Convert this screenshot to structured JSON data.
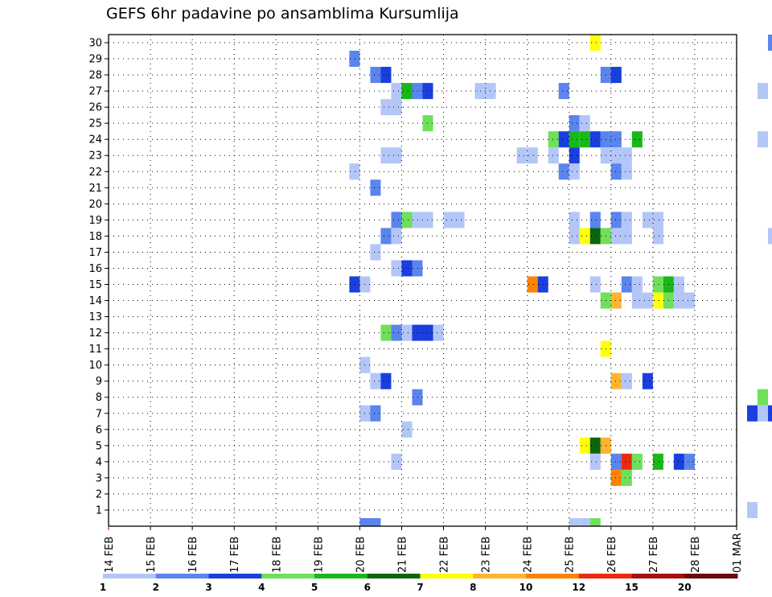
{
  "chart_data": {
    "type": "heatmap",
    "title": "GEFS 6hr padavine po ansamblima Kursumlija",
    "xlabel": "",
    "ylabel": "",
    "x_ticks": [
      "14 FEB",
      "15 FEB",
      "16 FEB",
      "17 FEB",
      "18 FEB",
      "19 FEB",
      "20 FEB",
      "21 FEB",
      "22 FEB",
      "23 FEB",
      "24 FEB",
      "25 FEB",
      "26 FEB",
      "27 FEB",
      "28 FEB",
      "01 MAR"
    ],
    "x_range_days": [
      0,
      15
    ],
    "y_ticks": [
      1,
      2,
      3,
      4,
      5,
      6,
      7,
      8,
      9,
      10,
      11,
      12,
      13,
      14,
      15,
      16,
      17,
      18,
      19,
      20,
      21,
      22,
      23,
      24,
      25,
      26,
      27,
      28,
      29,
      30
    ],
    "ylim": [
      0,
      30
    ],
    "grid": true,
    "legend": {
      "placement": "bottom",
      "labels": [
        "1",
        "2",
        "3",
        "4",
        "5",
        "6",
        "7",
        "8",
        "10",
        "12",
        "15",
        "20"
      ],
      "colors": [
        "#b3c6f7",
        "#5a84ee",
        "#1a3fde",
        "#6ee05a",
        "#18b818",
        "#0a660a",
        "#ffff0a",
        "#ffb430",
        "#ff8200",
        "#e82a10",
        "#a81010",
        "#6a0a0a"
      ]
    },
    "cells": [
      {
        "member": 30,
        "t": 25.5,
        "class": 7
      },
      {
        "member": 30,
        "t": 29.75,
        "class": 2
      },
      {
        "member": 29,
        "t": 19.75,
        "class": 2
      },
      {
        "member": 28,
        "t": 20.25,
        "class": 2
      },
      {
        "member": 28,
        "t": 20.5,
        "class": 3
      },
      {
        "member": 28,
        "t": 25.75,
        "class": 2
      },
      {
        "member": 28,
        "t": 26.0,
        "class": 3
      },
      {
        "member": 27,
        "t": 20.75,
        "class": 1
      },
      {
        "member": 27,
        "t": 21.0,
        "class": 5
      },
      {
        "member": 27,
        "t": 21.25,
        "class": 2
      },
      {
        "member": 27,
        "t": 21.5,
        "class": 3
      },
      {
        "member": 27,
        "t": 22.75,
        "class": 1
      },
      {
        "member": 27,
        "t": 23.0,
        "class": 1
      },
      {
        "member": 27,
        "t": 24.75,
        "class": 2
      },
      {
        "member": 27,
        "t": 29.5,
        "class": 1
      },
      {
        "member": 26,
        "t": 20.5,
        "class": 1
      },
      {
        "member": 26,
        "t": 20.75,
        "class": 1
      },
      {
        "member": 25,
        "t": 21.5,
        "class": 4
      },
      {
        "member": 25,
        "t": 25.0,
        "class": 2
      },
      {
        "member": 25,
        "t": 25.25,
        "class": 1
      },
      {
        "member": 24,
        "t": 24.5,
        "class": 4
      },
      {
        "member": 24,
        "t": 24.75,
        "class": 3
      },
      {
        "member": 24,
        "t": 25.0,
        "class": 5
      },
      {
        "member": 24,
        "t": 25.25,
        "class": 5
      },
      {
        "member": 24,
        "t": 25.5,
        "class": 3
      },
      {
        "member": 24,
        "t": 25.75,
        "class": 2
      },
      {
        "member": 24,
        "t": 26.0,
        "class": 2
      },
      {
        "member": 24,
        "t": 26.5,
        "class": 5
      },
      {
        "member": 24,
        "t": 29.5,
        "class": 1
      },
      {
        "member": 23,
        "t": 20.5,
        "class": 1
      },
      {
        "member": 23,
        "t": 20.75,
        "class": 1
      },
      {
        "member": 23,
        "t": 23.75,
        "class": 1
      },
      {
        "member": 23,
        "t": 24.0,
        "class": 1
      },
      {
        "member": 23,
        "t": 24.5,
        "class": 1
      },
      {
        "member": 23,
        "t": 25.0,
        "class": 3
      },
      {
        "member": 23,
        "t": 25.75,
        "class": 1
      },
      {
        "member": 23,
        "t": 26.0,
        "class": 1
      },
      {
        "member": 23,
        "t": 26.25,
        "class": 1
      },
      {
        "member": 22,
        "t": 19.75,
        "class": 1
      },
      {
        "member": 22,
        "t": 24.75,
        "class": 2
      },
      {
        "member": 22,
        "t": 25.0,
        "class": 1
      },
      {
        "member": 22,
        "t": 26.0,
        "class": 2
      },
      {
        "member": 22,
        "t": 26.25,
        "class": 1
      },
      {
        "member": 21,
        "t": 20.25,
        "class": 2
      },
      {
        "member": 19,
        "t": 20.75,
        "class": 2
      },
      {
        "member": 19,
        "t": 21.0,
        "class": 4
      },
      {
        "member": 19,
        "t": 21.25,
        "class": 1
      },
      {
        "member": 19,
        "t": 21.5,
        "class": 1
      },
      {
        "member": 19,
        "t": 22.0,
        "class": 1
      },
      {
        "member": 19,
        "t": 22.25,
        "class": 1
      },
      {
        "member": 19,
        "t": 25.0,
        "class": 1
      },
      {
        "member": 19,
        "t": 25.5,
        "class": 2
      },
      {
        "member": 19,
        "t": 26.0,
        "class": 2
      },
      {
        "member": 19,
        "t": 26.25,
        "class": 1
      },
      {
        "member": 19,
        "t": 26.75,
        "class": 1
      },
      {
        "member": 19,
        "t": 27.0,
        "class": 1
      },
      {
        "member": 18,
        "t": 20.5,
        "class": 2
      },
      {
        "member": 18,
        "t": 20.75,
        "class": 1
      },
      {
        "member": 18,
        "t": 25.0,
        "class": 1
      },
      {
        "member": 18,
        "t": 25.25,
        "class": 7
      },
      {
        "member": 18,
        "t": 25.5,
        "class": 6
      },
      {
        "member": 18,
        "t": 25.75,
        "class": 4
      },
      {
        "member": 18,
        "t": 26.0,
        "class": 1
      },
      {
        "member": 18,
        "t": 26.25,
        "class": 1
      },
      {
        "member": 18,
        "t": 27.0,
        "class": 1
      },
      {
        "member": 18,
        "t": 29.75,
        "class": 1
      },
      {
        "member": 17,
        "t": 20.25,
        "class": 1
      },
      {
        "member": 16,
        "t": 20.75,
        "class": 1
      },
      {
        "member": 16,
        "t": 21.0,
        "class": 3
      },
      {
        "member": 16,
        "t": 21.25,
        "class": 2
      },
      {
        "member": 15,
        "t": 19.75,
        "class": 3
      },
      {
        "member": 15,
        "t": 20.0,
        "class": 1
      },
      {
        "member": 15,
        "t": 24.0,
        "class": 9
      },
      {
        "member": 15,
        "t": 24.25,
        "class": 3
      },
      {
        "member": 15,
        "t": 25.5,
        "class": 1
      },
      {
        "member": 15,
        "t": 26.25,
        "class": 2
      },
      {
        "member": 15,
        "t": 26.5,
        "class": 1
      },
      {
        "member": 15,
        "t": 27.0,
        "class": 4
      },
      {
        "member": 15,
        "t": 27.25,
        "class": 5
      },
      {
        "member": 15,
        "t": 27.5,
        "class": 1
      },
      {
        "member": 14,
        "t": 25.75,
        "class": 4
      },
      {
        "member": 14,
        "t": 26.0,
        "class": 8
      },
      {
        "member": 14,
        "t": 26.5,
        "class": 1
      },
      {
        "member": 14,
        "t": 26.75,
        "class": 1
      },
      {
        "member": 14,
        "t": 27.0,
        "class": 7
      },
      {
        "member": 14,
        "t": 27.25,
        "class": 4
      },
      {
        "member": 14,
        "t": 27.5,
        "class": 1
      },
      {
        "member": 14,
        "t": 27.75,
        "class": 1
      },
      {
        "member": 12,
        "t": 20.5,
        "class": 4
      },
      {
        "member": 12,
        "t": 20.75,
        "class": 2
      },
      {
        "member": 12,
        "t": 21.0,
        "class": 1
      },
      {
        "member": 12,
        "t": 21.25,
        "class": 3
      },
      {
        "member": 12,
        "t": 21.5,
        "class": 3
      },
      {
        "member": 12,
        "t": 21.75,
        "class": 1
      },
      {
        "member": 11,
        "t": 25.75,
        "class": 7
      },
      {
        "member": 10,
        "t": 20.0,
        "class": 1
      },
      {
        "member": 9,
        "t": 20.25,
        "class": 1
      },
      {
        "member": 9,
        "t": 20.5,
        "class": 3
      },
      {
        "member": 9,
        "t": 26.0,
        "class": 8
      },
      {
        "member": 9,
        "t": 26.25,
        "class": 1
      },
      {
        "member": 9,
        "t": 26.75,
        "class": 3
      },
      {
        "member": 8,
        "t": 21.25,
        "class": 2
      },
      {
        "member": 8,
        "t": 29.5,
        "class": 4
      },
      {
        "member": 7,
        "t": 20.0,
        "class": 1
      },
      {
        "member": 7,
        "t": 20.25,
        "class": 2
      },
      {
        "member": 7,
        "t": 29.25,
        "class": 3
      },
      {
        "member": 7,
        "t": 29.5,
        "class": 1
      },
      {
        "member": 7,
        "t": 29.75,
        "class": 3
      },
      {
        "member": 6,
        "t": 21.0,
        "class": 1
      },
      {
        "member": 5,
        "t": 25.25,
        "class": 7
      },
      {
        "member": 5,
        "t": 25.5,
        "class": 6
      },
      {
        "member": 5,
        "t": 25.75,
        "class": 8
      },
      {
        "member": 4,
        "t": 20.75,
        "class": 1
      },
      {
        "member": 4,
        "t": 25.5,
        "class": 1
      },
      {
        "member": 4,
        "t": 26.0,
        "class": 2
      },
      {
        "member": 4,
        "t": 26.25,
        "class": 10
      },
      {
        "member": 4,
        "t": 26.5,
        "class": 4
      },
      {
        "member": 4,
        "t": 27.0,
        "class": 5
      },
      {
        "member": 4,
        "t": 27.5,
        "class": 3
      },
      {
        "member": 4,
        "t": 27.75,
        "class": 2
      },
      {
        "member": 3,
        "t": 26.0,
        "class": 9
      },
      {
        "member": 3,
        "t": 26.25,
        "class": 4
      },
      {
        "member": 1,
        "t": 29.25,
        "class": 1
      },
      {
        "member": 0,
        "t": 20.0,
        "class": 2
      },
      {
        "member": 0,
        "t": 20.25,
        "class": 2
      },
      {
        "member": 0,
        "t": 25.0,
        "class": 1
      },
      {
        "member": 0,
        "t": 25.25,
        "class": 1
      },
      {
        "member": 0,
        "t": 25.5,
        "class": 4
      }
    ]
  }
}
